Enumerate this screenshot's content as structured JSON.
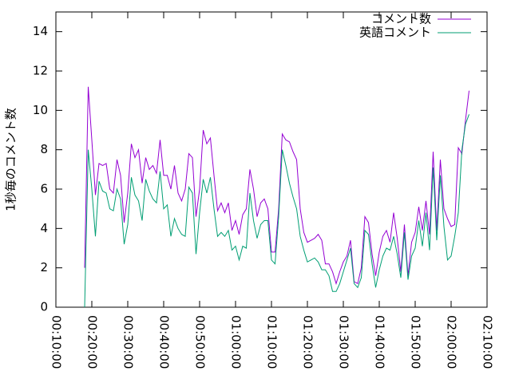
{
  "chart_data": {
    "type": "line",
    "y_label": "1秒毎のコメント数",
    "xlim": [
      "00:10:00",
      "02:10:00"
    ],
    "xticks": [
      "00:10:00",
      "00:20:00",
      "00:30:00",
      "00:40:00",
      "00:50:00",
      "01:00:00",
      "01:10:00",
      "01:20:00",
      "01:30:00",
      "01:40:00",
      "01:50:00",
      "02:00:00",
      "02:10:00"
    ],
    "ylim": [
      0,
      15
    ],
    "yticks": [
      0,
      2,
      4,
      6,
      8,
      10,
      12,
      14
    ],
    "legend": "top right",
    "x": [
      "00:18:00",
      "00:19:00",
      "00:20:00",
      "00:21:00",
      "00:22:00",
      "00:23:00",
      "00:24:00",
      "00:25:00",
      "00:26:00",
      "00:27:00",
      "00:28:00",
      "00:29:00",
      "00:30:00",
      "00:31:00",
      "00:32:00",
      "00:33:00",
      "00:34:00",
      "00:35:00",
      "00:36:00",
      "00:37:00",
      "00:38:00",
      "00:39:00",
      "00:40:00",
      "00:41:00",
      "00:42:00",
      "00:43:00",
      "00:44:00",
      "00:45:00",
      "00:46:00",
      "00:47:00",
      "00:48:00",
      "00:49:00",
      "00:50:00",
      "00:51:00",
      "00:52:00",
      "00:53:00",
      "00:54:00",
      "00:55:00",
      "00:56:00",
      "00:57:00",
      "00:58:00",
      "00:59:00",
      "01:00:00",
      "01:01:00",
      "01:02:00",
      "01:03:00",
      "01:04:00",
      "01:05:00",
      "01:06:00",
      "01:07:00",
      "01:08:00",
      "01:09:00",
      "01:10:00",
      "01:11:00",
      "01:12:00",
      "01:13:00",
      "01:14:00",
      "01:15:00",
      "01:16:00",
      "01:17:00",
      "01:18:00",
      "01:19:00",
      "01:20:00",
      "01:21:00",
      "01:22:00",
      "01:23:00",
      "01:24:00",
      "01:25:00",
      "01:26:00",
      "01:27:00",
      "01:28:00",
      "01:29:00",
      "01:30:00",
      "01:31:00",
      "01:32:00",
      "01:33:00",
      "01:34:00",
      "01:35:00",
      "01:36:00",
      "01:37:00",
      "01:38:00",
      "01:39:00",
      "01:40:00",
      "01:41:00",
      "01:42:00",
      "01:43:00",
      "01:44:00",
      "01:45:00",
      "01:46:00",
      "01:47:00",
      "01:48:00",
      "01:49:00",
      "01:50:00",
      "01:51:00",
      "01:52:00",
      "01:53:00",
      "01:54:00",
      "01:55:00",
      "01:56:00",
      "01:57:00",
      "01:58:00",
      "01:59:00",
      "02:00:00",
      "02:01:00",
      "02:02:00",
      "02:03:00",
      "02:04:00",
      "02:05:00"
    ],
    "series": [
      {
        "name": "コメント数",
        "color": "#9400d3",
        "values": [
          2.0,
          11.2,
          8.5,
          5.7,
          7.3,
          7.2,
          7.3,
          6.0,
          5.8,
          7.5,
          6.7,
          4.3,
          5.8,
          8.3,
          7.6,
          8.0,
          6.3,
          7.6,
          7.0,
          7.2,
          6.8,
          8.5,
          6.7,
          6.7,
          6.0,
          7.2,
          5.8,
          5.4,
          6.0,
          7.8,
          7.6,
          4.6,
          6.0,
          9.0,
          8.3,
          8.6,
          6.7,
          4.9,
          5.3,
          4.8,
          5.3,
          3.9,
          4.4,
          3.7,
          4.7,
          5.0,
          7.0,
          6.0,
          4.6,
          5.3,
          5.5,
          5.0,
          2.8,
          2.8,
          5.0,
          8.8,
          8.5,
          8.4,
          7.9,
          7.5,
          5.0,
          3.8,
          3.3,
          3.4,
          3.5,
          3.7,
          3.4,
          2.2,
          2.2,
          1.8,
          1.2,
          1.8,
          2.3,
          2.6,
          3.4,
          1.3,
          1.2,
          2.0,
          4.6,
          4.3,
          2.7,
          1.6,
          2.8,
          3.6,
          3.9,
          3.3,
          4.8,
          3.5,
          1.8,
          4.2,
          1.6,
          3.3,
          3.8,
          5.1,
          3.9,
          5.4,
          3.7,
          7.9,
          3.9,
          7.5,
          5.0,
          4.5,
          4.1,
          4.2,
          8.1,
          7.8,
          9.5,
          11.0
        ]
      },
      {
        "name": "英語コメント",
        "color": "#009e73",
        "values": [
          0,
          8.0,
          6.0,
          3.6,
          6.4,
          5.9,
          5.8,
          5.0,
          4.9,
          6.0,
          5.5,
          3.2,
          4.2,
          6.6,
          5.7,
          5.4,
          4.4,
          6.5,
          5.9,
          5.5,
          5.3,
          6.9,
          5.0,
          5.2,
          3.6,
          4.5,
          4.0,
          3.7,
          3.6,
          6.1,
          5.8,
          2.7,
          4.8,
          6.5,
          5.8,
          6.6,
          5.0,
          3.6,
          3.8,
          3.6,
          3.9,
          2.9,
          3.1,
          2.4,
          3.1,
          3.0,
          5.8,
          4.4,
          3.5,
          4.2,
          4.4,
          4.4,
          2.4,
          2.2,
          4.6,
          8.0,
          7.2,
          6.3,
          5.6,
          5.0,
          3.6,
          2.9,
          2.3,
          2.4,
          2.5,
          2.3,
          1.9,
          1.9,
          1.6,
          0.8,
          0.8,
          1.2,
          1.8,
          2.4,
          3.0,
          1.2,
          1.0,
          1.5,
          3.9,
          3.7,
          2.2,
          1.0,
          1.9,
          2.6,
          3.0,
          2.9,
          3.6,
          2.7,
          1.5,
          3.8,
          1.4,
          2.6,
          3.0,
          4.4,
          3.1,
          4.8,
          2.9,
          7.1,
          3.4,
          6.7,
          4.1,
          2.4,
          2.6,
          3.6,
          4.8,
          8.0,
          9.3,
          9.8
        ]
      }
    ]
  }
}
